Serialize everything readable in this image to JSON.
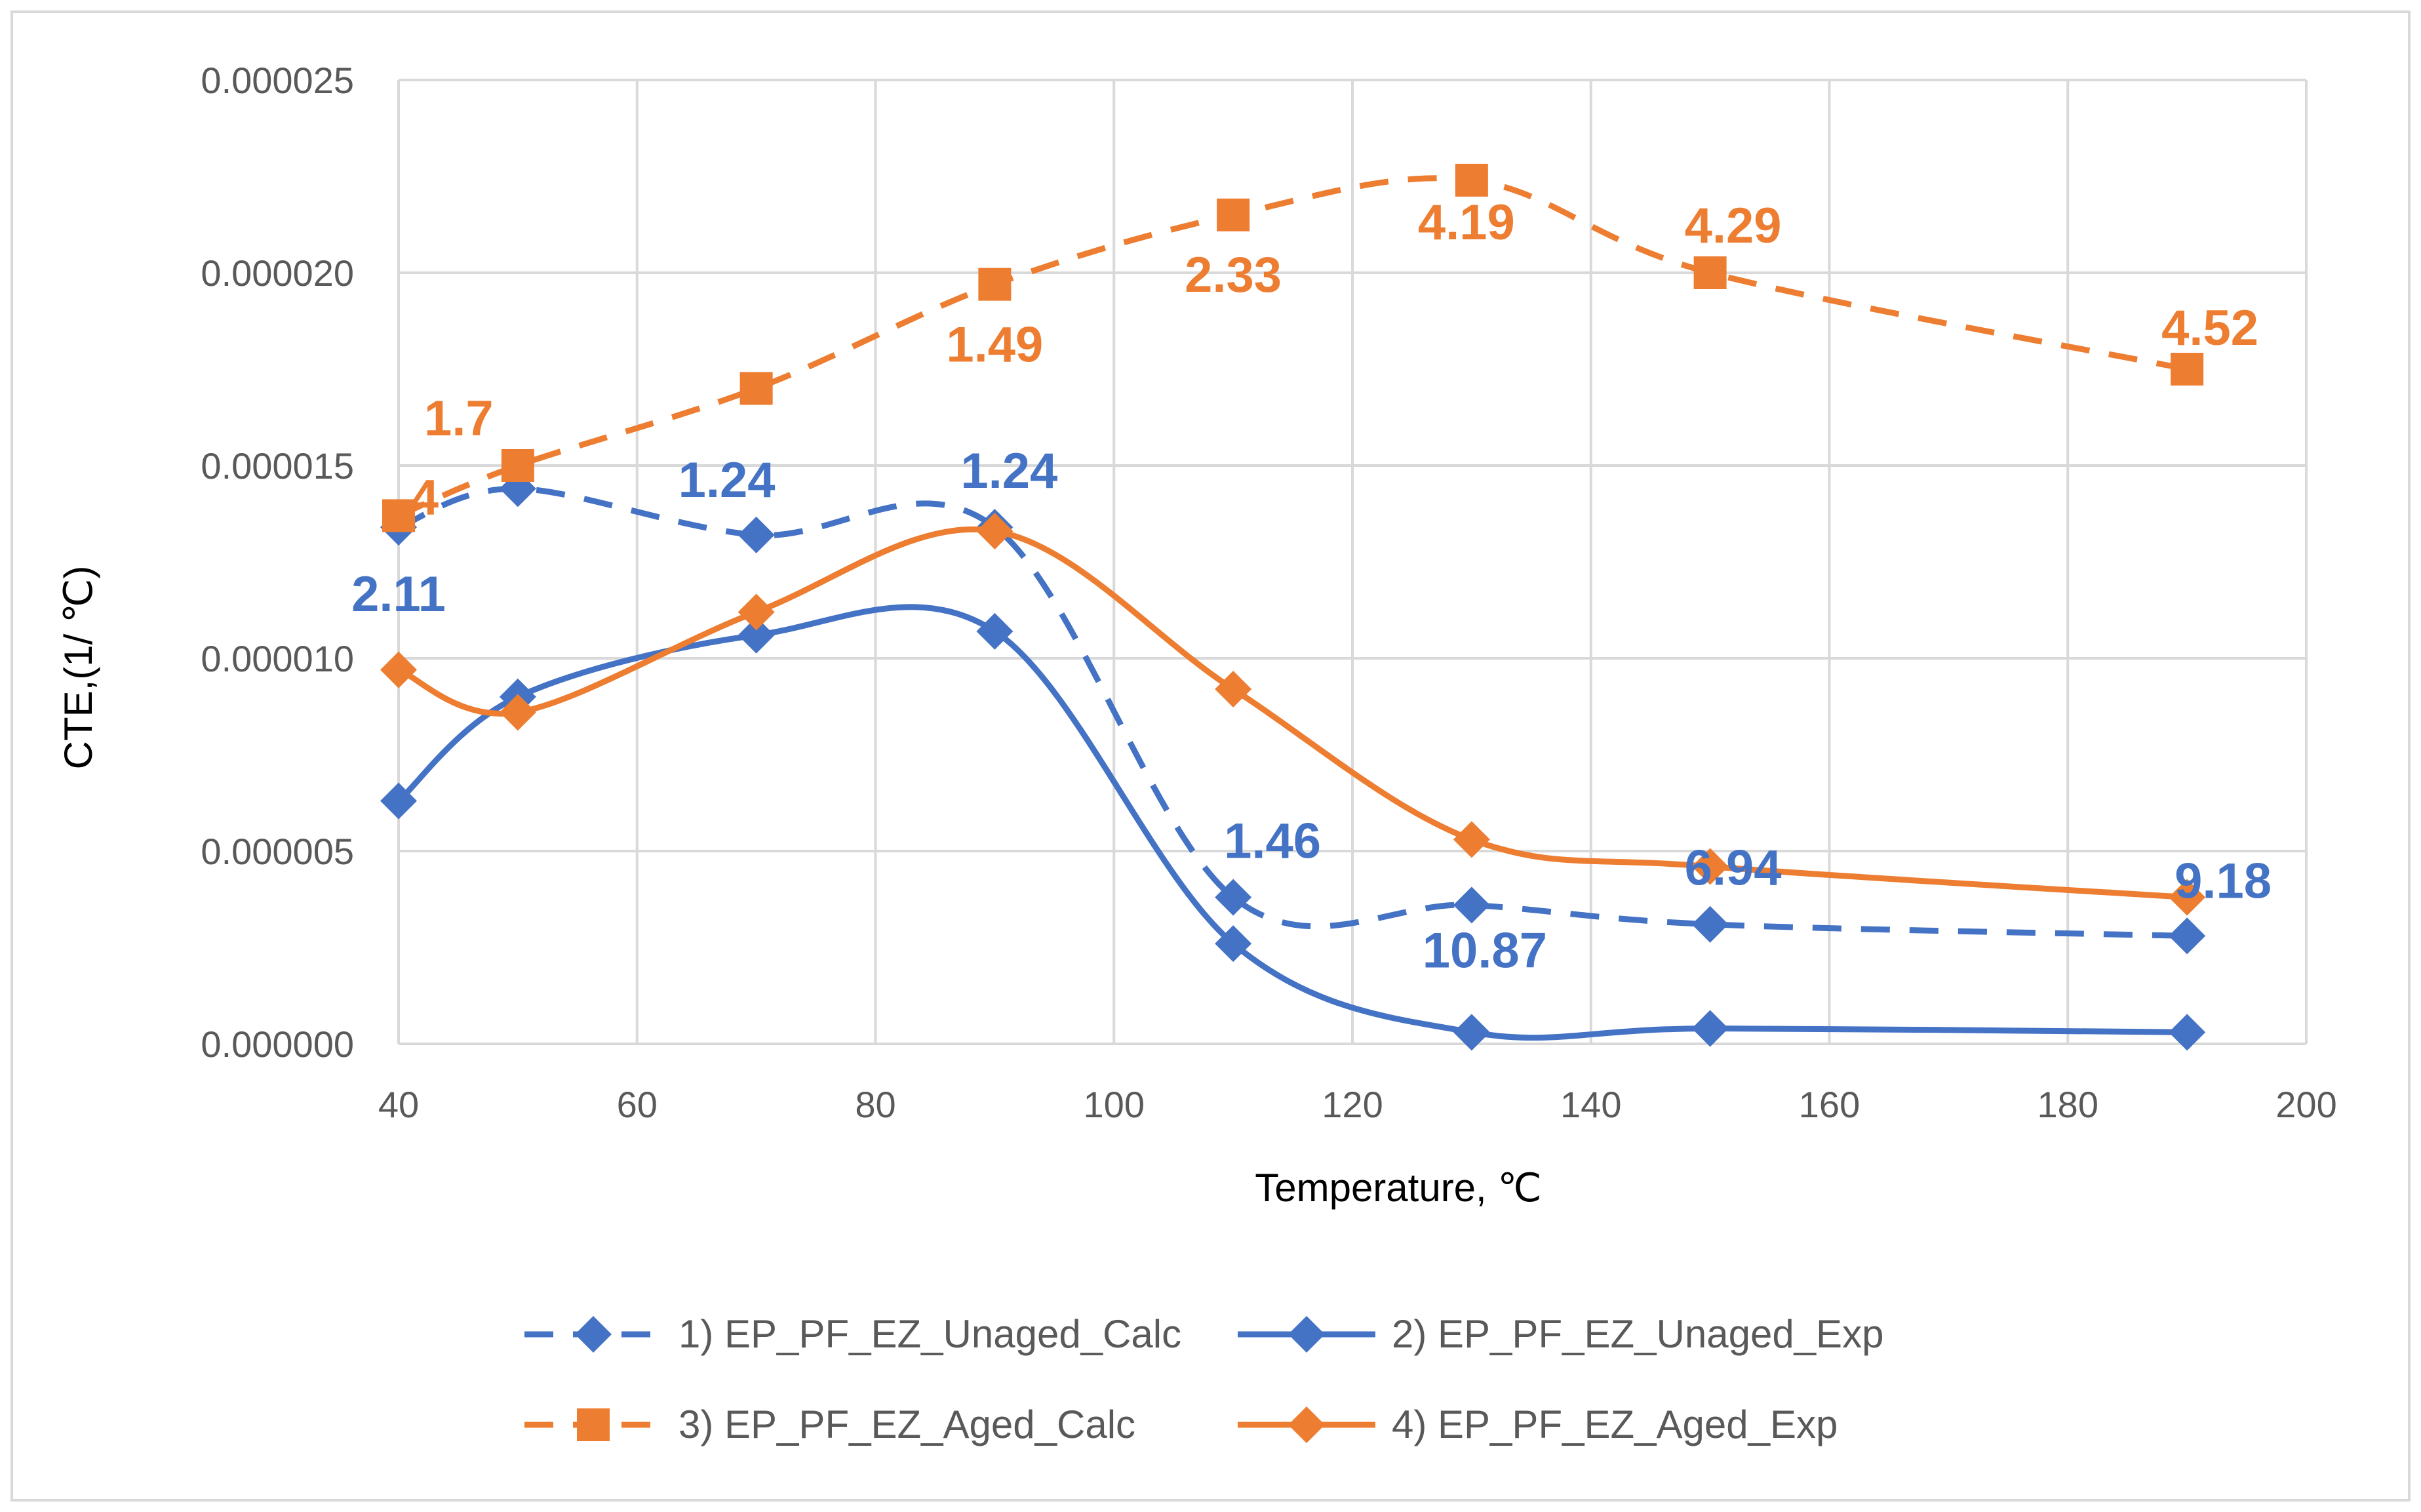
{
  "chart_data": {
    "type": "line",
    "title": "",
    "xlabel": "Temperature, ℃",
    "ylabel": "CTE,(1/ ℃)",
    "xlim": [
      40,
      200
    ],
    "ylim": [
      0,
      2.5e-05
    ],
    "xticks": [
      "40",
      "60",
      "80",
      "100",
      "120",
      "140",
      "160",
      "180",
      "200"
    ],
    "yticks": [
      "0.000000",
      "0.000005",
      "0.000010",
      "0.000015",
      "0.000020",
      "0.000025"
    ],
    "grid": true,
    "legend_position": "bottom",
    "series": [
      {
        "name": "1) EP_PF_EZ_Unaged_Calc",
        "style": "dashed",
        "marker": "diamond",
        "color": "#4472C4",
        "x": [
          40,
          50,
          70,
          90,
          110,
          130,
          150,
          190
        ],
        "y": [
          1.34e-05,
          1.44e-05,
          1.32e-05,
          1.34e-05,
          3.8e-06,
          3.6e-06,
          3.1e-06,
          2.8e-06
        ],
        "labels": [
          {
            "x": 40,
            "text": "2.11"
          },
          {
            "x": 70,
            "text": "1.24"
          },
          {
            "x": 90,
            "text": "1.24"
          },
          {
            "x": 110,
            "text": "1.46"
          },
          {
            "x": 130,
            "text": "10.87"
          },
          {
            "x": 150,
            "text": "6.94"
          },
          {
            "x": 190,
            "text": "9.18"
          }
        ]
      },
      {
        "name": "2) EP_PF_EZ_Unaged_Exp",
        "style": "solid",
        "marker": "diamond",
        "color": "#4472C4",
        "x": [
          40,
          50,
          70,
          90,
          110,
          130,
          150,
          190
        ],
        "y": [
          6.3e-06,
          9e-06,
          1.06e-05,
          1.07e-05,
          2.6e-06,
          3e-07,
          4e-07,
          3e-07
        ],
        "labels": []
      },
      {
        "name": "3) EP_PF_EZ_Aged_Calc",
        "style": "dashed",
        "marker": "square",
        "color": "#ED7D31",
        "x": [
          40,
          50,
          70,
          90,
          110,
          130,
          150,
          190
        ],
        "y": [
          1.37e-05,
          1.5e-05,
          1.7e-05,
          1.97e-05,
          2.15e-05,
          2.24e-05,
          2e-05,
          1.75e-05
        ],
        "labels": [
          {
            "x": 40,
            "text": "4"
          },
          {
            "x": 50,
            "text": "1.7"
          },
          {
            "x": 90,
            "text": "1.49"
          },
          {
            "x": 110,
            "text": "2.33"
          },
          {
            "x": 130,
            "text": "4.19"
          },
          {
            "x": 150,
            "text": "4.29"
          },
          {
            "x": 190,
            "text": "4.52"
          }
        ]
      },
      {
        "name": "4) EP_PF_EZ_Aged_Exp",
        "style": "solid",
        "marker": "diamond",
        "color": "#ED7D31",
        "x": [
          40,
          50,
          70,
          90,
          110,
          130,
          150,
          190
        ],
        "y": [
          9.7e-06,
          8.6e-06,
          1.12e-05,
          1.33e-05,
          9.2e-06,
          5.3e-06,
          4.6e-06,
          3.8e-06
        ],
        "labels": []
      }
    ]
  }
}
